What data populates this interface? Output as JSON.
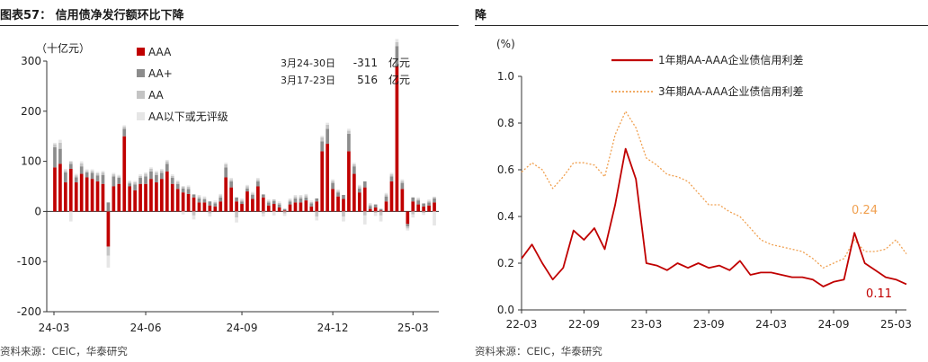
{
  "left_title": "图表57：  信用债净发行额环比下降",
  "right_title": "降",
  "left_source": "资料来源：CEIC，华泰研究",
  "right_source": "资料来源：CEIC，华泰研究",
  "colors": {
    "AAA": "#c00000",
    "AA_plus": "#8c8c8c",
    "AA": "#c4c4c4",
    "below": "#e6e6e6",
    "line1": "#c00000",
    "line3": "#f0a050"
  },
  "annotations": {
    "row1": {
      "period": "3月24-30日",
      "value": "-311",
      "unit": "亿元"
    },
    "row2": {
      "period": "3月17-23日",
      "value": "516",
      "unit": "亿元"
    }
  },
  "chart_data": [
    {
      "type": "bar",
      "stacked": true,
      "ylabel": "（十亿元）",
      "ylim": [
        -200,
        300
      ],
      "yticks": [
        -200,
        -100,
        0,
        100,
        200,
        300
      ],
      "xticks": [
        "24-03",
        "24-06",
        "24-09",
        "24-12",
        "25-03"
      ],
      "legend_position": "top-center",
      "series": [
        {
          "name": "AAA",
          "values": [
            88,
            95,
            58,
            85,
            58,
            75,
            68,
            65,
            60,
            55,
            -70,
            50,
            55,
            150,
            50,
            42,
            55,
            55,
            65,
            58,
            65,
            80,
            55,
            45,
            38,
            35,
            28,
            18,
            18,
            12,
            10,
            20,
            68,
            48,
            20,
            15,
            40,
            25,
            50,
            28,
            12,
            15,
            8,
            2,
            14,
            18,
            18,
            22,
            10,
            20,
            120,
            135,
            45,
            30,
            25,
            120,
            75,
            38,
            48,
            5,
            8,
            2,
            20,
            60,
            290,
            45,
            -25,
            20,
            14,
            10,
            12,
            18
          ]
        },
        {
          "name": "AA+",
          "values": [
            40,
            30,
            20,
            10,
            10,
            15,
            10,
            12,
            12,
            18,
            18,
            20,
            12,
            15,
            6,
            12,
            12,
            15,
            15,
            15,
            12,
            15,
            12,
            10,
            8,
            10,
            6,
            8,
            6,
            8,
            6,
            8,
            20,
            12,
            8,
            5,
            6,
            8,
            10,
            6,
            6,
            6,
            6,
            3,
            6,
            8,
            8,
            6,
            6,
            6,
            20,
            30,
            12,
            8,
            8,
            35,
            15,
            8,
            12,
            6,
            6,
            3,
            10,
            10,
            40,
            12,
            -5,
            8,
            8,
            6,
            6,
            8
          ]
        },
        {
          "name": "AA",
          "values": [
            6,
            12,
            4,
            5,
            4,
            6,
            3,
            4,
            4,
            5,
            -18,
            4,
            3,
            4,
            3,
            4,
            4,
            5,
            5,
            5,
            5,
            5,
            4,
            4,
            4,
            4,
            -8,
            4,
            3,
            -4,
            3,
            4,
            6,
            4,
            -12,
            3,
            4,
            3,
            4,
            -4,
            3,
            3,
            3,
            -4,
            3,
            4,
            4,
            4,
            3,
            -10,
            8,
            8,
            4,
            3,
            -10,
            6,
            4,
            4,
            -8,
            3,
            -3,
            -8,
            4,
            4,
            8,
            4,
            -4,
            -6,
            3,
            -3,
            3,
            3
          ]
        },
        {
          "name": "AA以下或无评级",
          "values": [
            3,
            6,
            3,
            -20,
            3,
            4,
            3,
            3,
            3,
            3,
            -24,
            3,
            3,
            3,
            3,
            3,
            3,
            3,
            3,
            3,
            3,
            3,
            3,
            3,
            -6,
            3,
            -8,
            3,
            3,
            -6,
            3,
            3,
            3,
            3,
            -10,
            3,
            3,
            3,
            3,
            -6,
            3,
            -8,
            3,
            -5,
            3,
            3,
            3,
            3,
            3,
            -8,
            3,
            4,
            3,
            3,
            -10,
            4,
            3,
            3,
            -18,
            3,
            -6,
            -12,
            3,
            3,
            6,
            3,
            -4,
            -6,
            3,
            -4,
            3,
            -28
          ]
        }
      ]
    },
    {
      "type": "line",
      "ylabel": "(%)",
      "ylim": [
        0,
        1.0
      ],
      "yticks": [
        "0.0",
        "0.2",
        "0.4",
        "0.6",
        "0.8",
        "1.0"
      ],
      "xticks": [
        "22-03",
        "22-09",
        "23-03",
        "23-09",
        "24-03",
        "24-09",
        "25-03"
      ],
      "xrange": [
        "2022-03",
        "2025-04"
      ],
      "legend_position": "top-center",
      "series": [
        {
          "name": "1年期AA-AAA企业债信用利差",
          "x": [
            "2022-03",
            "2022-04",
            "2022-05",
            "2022-06",
            "2022-07",
            "2022-08",
            "2022-09",
            "2022-10",
            "2022-11",
            "2022-12",
            "2023-01",
            "2023-02",
            "2023-03",
            "2023-04",
            "2023-05",
            "2023-06",
            "2023-07",
            "2023-08",
            "2023-09",
            "2023-10",
            "2023-11",
            "2023-12",
            "2024-01",
            "2024-02",
            "2024-03",
            "2024-04",
            "2024-05",
            "2024-06",
            "2024-07",
            "2024-08",
            "2024-09",
            "2024-10",
            "2024-11",
            "2024-12",
            "2025-01",
            "2025-02",
            "2025-03",
            "2025-04"
          ],
          "values": [
            0.22,
            0.28,
            0.2,
            0.13,
            0.18,
            0.34,
            0.3,
            0.35,
            0.26,
            0.45,
            0.69,
            0.56,
            0.2,
            0.19,
            0.17,
            0.2,
            0.18,
            0.2,
            0.18,
            0.19,
            0.17,
            0.21,
            0.15,
            0.16,
            0.16,
            0.15,
            0.14,
            0.14,
            0.13,
            0.1,
            0.12,
            0.13,
            0.33,
            0.2,
            0.17,
            0.14,
            0.13,
            0.11
          ],
          "label": "0.11"
        },
        {
          "name": "3年期AA-AAA企业债信用利差",
          "x": [
            "2022-03",
            "2022-04",
            "2022-05",
            "2022-06",
            "2022-07",
            "2022-08",
            "2022-09",
            "2022-10",
            "2022-11",
            "2022-12",
            "2023-01",
            "2023-02",
            "2023-03",
            "2023-04",
            "2023-05",
            "2023-06",
            "2023-07",
            "2023-08",
            "2023-09",
            "2023-10",
            "2023-11",
            "2023-12",
            "2024-01",
            "2024-02",
            "2024-03",
            "2024-04",
            "2024-05",
            "2024-06",
            "2024-07",
            "2024-08",
            "2024-09",
            "2024-10",
            "2024-11",
            "2024-12",
            "2025-01",
            "2025-02",
            "2025-03",
            "2025-04"
          ],
          "values": [
            0.59,
            0.63,
            0.6,
            0.52,
            0.57,
            0.63,
            0.63,
            0.62,
            0.57,
            0.75,
            0.85,
            0.78,
            0.65,
            0.62,
            0.58,
            0.57,
            0.55,
            0.5,
            0.45,
            0.45,
            0.42,
            0.4,
            0.35,
            0.3,
            0.28,
            0.27,
            0.26,
            0.25,
            0.22,
            0.18,
            0.2,
            0.22,
            0.3,
            0.25,
            0.25,
            0.26,
            0.3,
            0.24
          ],
          "label": "0.24"
        }
      ]
    }
  ]
}
